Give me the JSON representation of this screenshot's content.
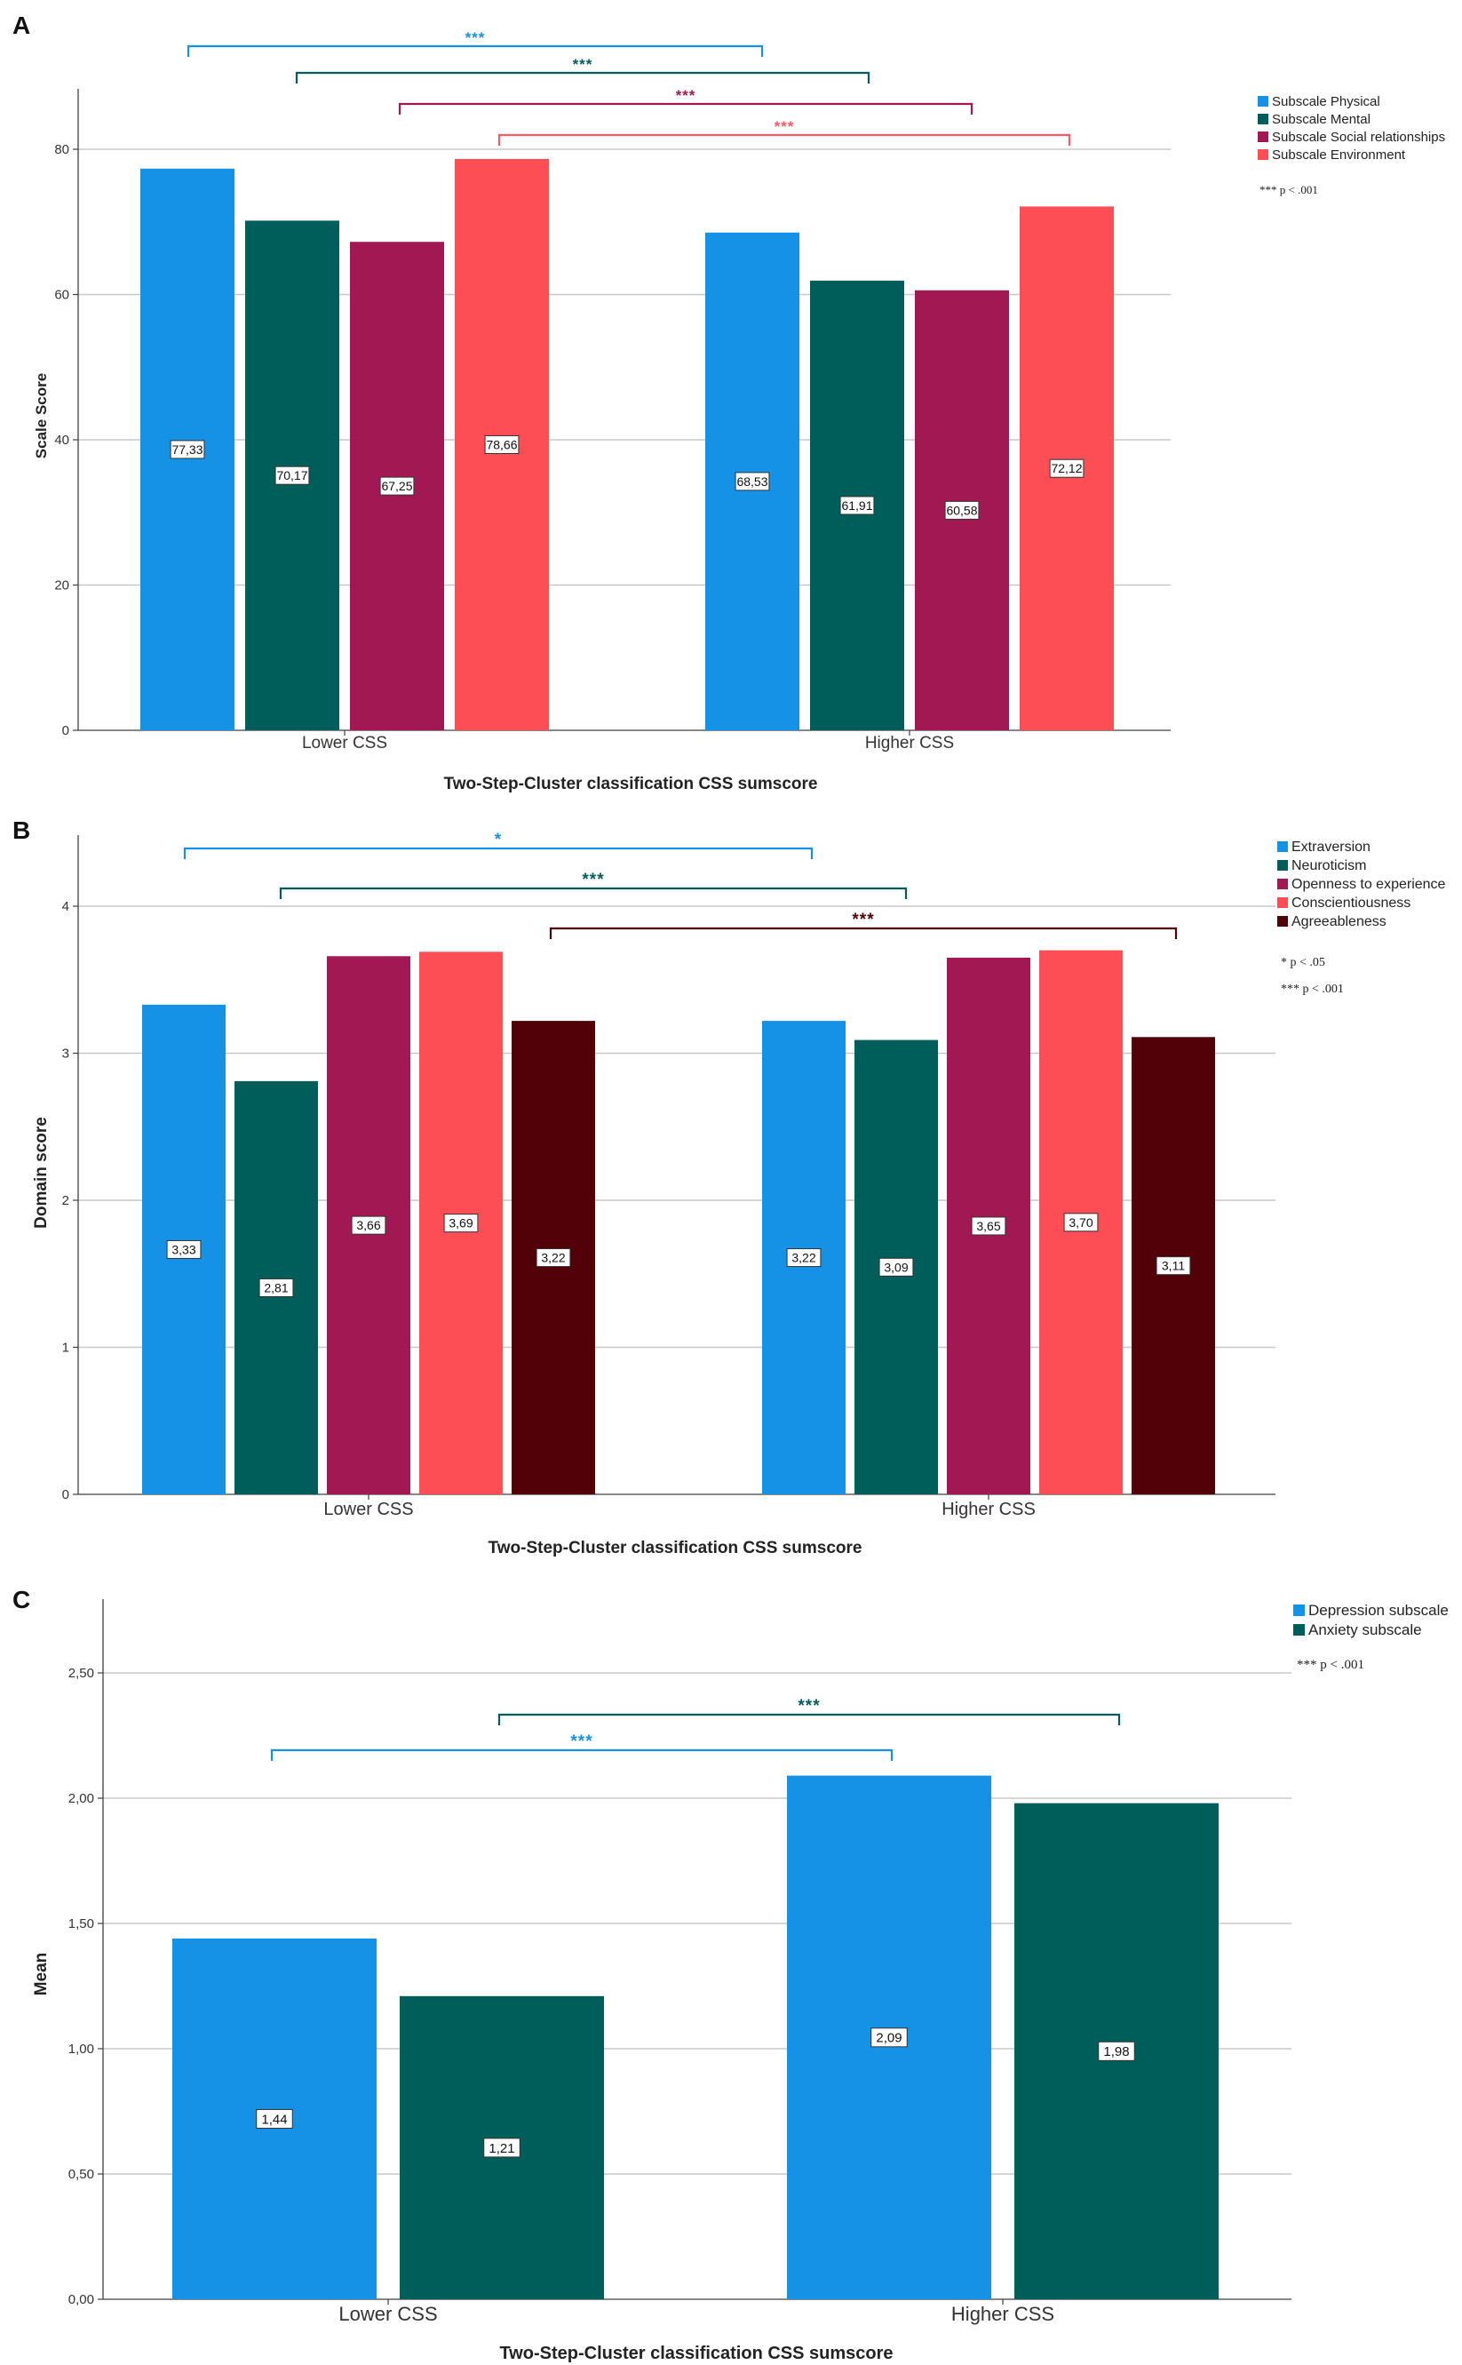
{
  "colors": {
    "blue": "#1591e6",
    "teal": "#005e5a",
    "magenta": "#a11852",
    "coral": "#fd4d55",
    "darkred": "#520109",
    "grid": "#c8c8c8",
    "axis": "#404040",
    "text": "#333333",
    "sig_red_line": "#ff5a61"
  },
  "chart_data": [
    {
      "panel_label": "A",
      "type": "bar",
      "title": "",
      "xlabel": "Two-Step-Cluster classification CSS sumscore",
      "ylabel": "Scale Score",
      "ylim": [
        0,
        90
      ],
      "yticks": [
        0,
        20,
        40,
        60,
        80
      ],
      "ytick_labels": [
        "0",
        "20",
        "40",
        "60",
        "80"
      ],
      "grid": true,
      "categories": [
        "Lower CSS",
        "Higher CSS"
      ],
      "series": [
        {
          "name": "Subscale Physical",
          "color": "blue",
          "values": [
            77.33,
            68.53
          ],
          "labels": [
            "77,33",
            "68,53"
          ]
        },
        {
          "name": "Subscale Mental",
          "color": "teal",
          "values": [
            70.17,
            61.91
          ],
          "labels": [
            "70,17",
            "61,91"
          ]
        },
        {
          "name": "Subscale Social relationships",
          "color": "magenta",
          "values": [
            67.25,
            60.58
          ],
          "labels": [
            "67,25",
            "60,58"
          ]
        },
        {
          "name": "Subscale Environment",
          "color": "coral",
          "values": [
            78.66,
            72.12
          ],
          "labels": [
            "78,66",
            "72,12"
          ]
        }
      ],
      "significance": [
        {
          "series_index": 0,
          "label": "***",
          "color": "blue"
        },
        {
          "series_index": 1,
          "label": "***",
          "color": "teal"
        },
        {
          "series_index": 2,
          "label": "***",
          "color": "magenta"
        },
        {
          "series_index": 3,
          "label": "***",
          "color": "sig_red_line"
        }
      ],
      "legend_position": "top-right",
      "legend_notes": [
        "*** p < .001"
      ]
    },
    {
      "panel_label": "B",
      "type": "bar",
      "title": "",
      "xlabel": "Two-Step-Cluster classification CSS sumscore",
      "ylabel": "Domain score",
      "ylim": [
        0,
        4.5
      ],
      "yticks": [
        0,
        1,
        2,
        3,
        4
      ],
      "ytick_labels": [
        "0",
        "1",
        "2",
        "3",
        "4"
      ],
      "grid": true,
      "categories": [
        "Lower CSS",
        "Higher CSS"
      ],
      "series": [
        {
          "name": "Extraversion",
          "color": "blue",
          "values": [
            3.33,
            3.22
          ],
          "labels": [
            "3,33",
            "3,22"
          ]
        },
        {
          "name": "Neuroticism",
          "color": "teal",
          "values": [
            2.81,
            3.09
          ],
          "labels": [
            "2,81",
            "3,09"
          ]
        },
        {
          "name": "Openness to experience",
          "color": "magenta",
          "values": [
            3.66,
            3.65
          ],
          "labels": [
            "3,66",
            "3,65"
          ]
        },
        {
          "name": "Conscientiousness",
          "color": "coral",
          "values": [
            3.69,
            3.7
          ],
          "labels": [
            "3,69",
            "3,70"
          ]
        },
        {
          "name": "Agreeableness",
          "color": "darkred",
          "values": [
            3.22,
            3.11
          ],
          "labels": [
            "3,22",
            "3,11"
          ]
        }
      ],
      "significance": [
        {
          "series_index": 0,
          "label": "*",
          "color": "blue"
        },
        {
          "series_index": 1,
          "label": "***",
          "color": "teal"
        },
        {
          "series_index": 4,
          "label": "***",
          "color": "darkred"
        }
      ],
      "legend_position": "top-right",
      "legend_notes": [
        "* p < .05",
        "*** p < .001"
      ]
    },
    {
      "panel_label": "C",
      "type": "bar",
      "title": "",
      "xlabel": "Two-Step-Cluster classification CSS sumscore",
      "ylabel": "Mean",
      "ylim": [
        0,
        2.8
      ],
      "yticks": [
        0,
        0.5,
        1,
        1.5,
        2,
        2.5
      ],
      "ytick_labels": [
        "0,00",
        "0,50",
        "1,00",
        "1,50",
        "2,00",
        "2,50"
      ],
      "grid": true,
      "categories": [
        "Lower CSS",
        "Higher CSS"
      ],
      "series": [
        {
          "name": "Depression subscale",
          "color": "blue",
          "values": [
            1.44,
            2.09
          ],
          "labels": [
            "1,44",
            "2,09"
          ]
        },
        {
          "name": "Anxiety subscale",
          "color": "teal",
          "values": [
            1.21,
            1.98
          ],
          "labels": [
            "1,21",
            "1,98"
          ]
        }
      ],
      "significance": [
        {
          "series_index": 1,
          "label": "***",
          "color": "teal"
        },
        {
          "series_index": 0,
          "label": "***",
          "color": "blue"
        }
      ],
      "legend_position": "top-right",
      "legend_notes": [
        "*** p < .001"
      ]
    }
  ]
}
